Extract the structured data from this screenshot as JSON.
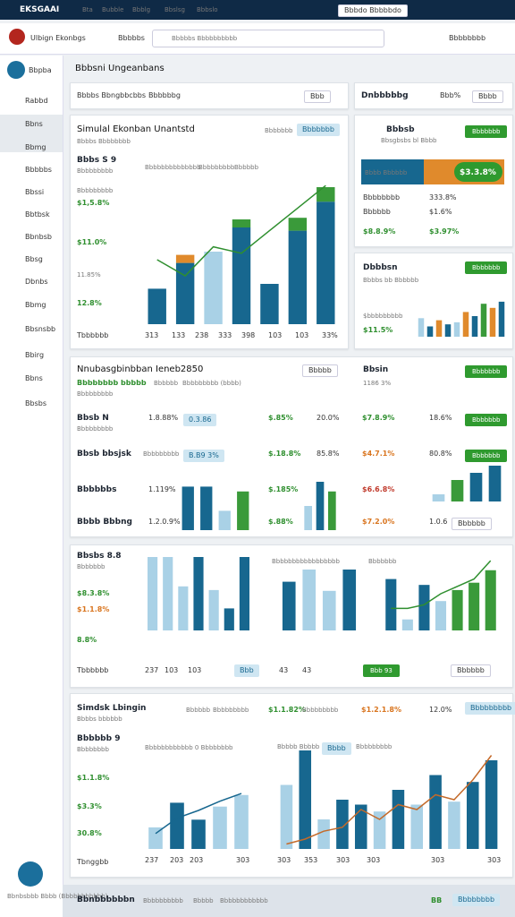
{
  "topbar": {
    "brand": "EKSGAAI",
    "nav": [
      "Bta",
      "Bubble",
      "Bbblg",
      "Bbslsg",
      "Bbbslo"
    ],
    "account": "Bbbdo Bbbbbdo"
  },
  "toolbar": {
    "title": "Ulbign Ekonbgs",
    "toggle": "Bbbbbs",
    "search": "Bbbbbs Bbbbbbbbbb",
    "user": "Bbbbbbbb"
  },
  "sidebar": {
    "header": "Bbpba",
    "items": [
      "Rabbd",
      "Bbns",
      "Bbmg",
      "Bbbbbs",
      "Bbssi",
      "Bbtbsk",
      "Bbnbsb",
      "Bbsg",
      "Dbnbs",
      "Bbmg",
      "Bbsnsbb",
      "Bbirg",
      "Bbns",
      "Bbsbs"
    ],
    "footer": "Bbnbsbbb Bbbb (Bbbbbbbbbbb)"
  },
  "page": {
    "title": "Bbbsni Ungeanbans"
  },
  "filter": {
    "label": "Bbbbs Bbngbbcbbs",
    "value": "Bbbbbbg",
    "select": "Bbb"
  },
  "overview": {
    "title": "Simulal Ekonban Unantstd",
    "subtitle": "Bbbbs Bbbbbbbb",
    "link": "Bbbbbbb",
    "button": "Bbbbbbb",
    "metric": "Bbbs S 9",
    "metric_sub": "Bbbbbbbbb",
    "legend": [
      "Bbbbbbbbbbbbbb",
      "Bbbbbbbbb",
      "Bbbbbb"
    ],
    "labels": [
      "Bbbbbbbbb",
      "$1,5.8%",
      "$11.0%",
      "11.85%",
      "12.8%"
    ],
    "footer": "Tbbbbbb",
    "xlabels": [
      "313",
      "133",
      "238",
      "333",
      "398",
      "103",
      "103",
      "33%"
    ]
  },
  "dnb": {
    "title": "Dnbbbbbg",
    "value": "Bbb%",
    "button": "Bbbb"
  },
  "status": {
    "title": "Bbbsb",
    "subtitle": "Bbsgbsbs bl Bbbb",
    "button": "Bbbbbbb",
    "bar_left": "Bbbb Bbbbbb",
    "bar_right": "$3.3.8%",
    "rows": [
      [
        "Bbbbbbbb",
        "333.8%"
      ],
      [
        "Bbbbbb",
        "$1.6%"
      ]
    ],
    "totals": [
      "$8.8.9%",
      "$3.97%"
    ]
  },
  "dist": {
    "title": "Dbbbsn",
    "subtitle": "Bbbbs bb Bbbbbb",
    "label": "$bbbbbbbbb",
    "value": "$11.5%",
    "button": "Bbbbbbb"
  },
  "table": {
    "title": "Nnubasgbinbban Ieneb2850",
    "tabs": [
      "Bbbbbbbb bbbbb",
      "Bbbbbb",
      "Bbbbbbbbb (bbbb)"
    ],
    "note": "Bbbbbbbbb",
    "button": "Bbbbb",
    "side_title": "Bbsin",
    "side_value": "1186 3%",
    "side_button": "Bbbbbbb",
    "rows": [
      [
        "Bbsb N",
        "Bbbbbbbbb",
        "1.8.88%",
        "0.3.86",
        "$.85%",
        "20.0%",
        "$7.8.9%",
        "18.6%",
        "Bbbbbbb"
      ],
      [
        "Bbsb bbsjsk",
        "Bbbbbbbbb",
        "B.B9 3%",
        "$.18.8%",
        "85.8%",
        "$4.7.1%",
        "80.8%",
        "Bbbbbbb"
      ],
      [
        "Bbbbbbs",
        "1.119%",
        "$.185%",
        "$6.6.8%"
      ],
      [
        "Bbbb Bbbng",
        "1.2.0.9%",
        "$.88%",
        "$7.2.0%",
        "1.0.6",
        "Bbbbbb"
      ]
    ]
  },
  "trends": {
    "title": "Bbsbs 8.8",
    "sub": "Bbbbbbb",
    "labels": [
      "$8.3.8%",
      "$1.1.8%",
      "8.8%"
    ],
    "footer": "Tbbbbbb",
    "headers": [
      "Bbbbbbbbbbbbbbbbb",
      "Bbbbbbb"
    ],
    "xlabels1": [
      "237",
      "103",
      "103"
    ],
    "chip": "Bbb",
    "xlabels2": [
      "43",
      "43"
    ],
    "chip2": "Bbb 93",
    "button": "Bbbbbb"
  },
  "summary": {
    "title": "Simdsk Lbingin",
    "sub": "Bbbbs bbbbbb",
    "legend": [
      "Bbbbbb",
      "Bbbbbbbbb"
    ],
    "stats": [
      "$1.1.82%",
      "Bbbbbbbbb",
      "$1.2.1.8%",
      "12.0%"
    ],
    "button": "Bbbbbbbbb",
    "metric": "Bbbbbb 9",
    "metric_sub": "Bbbbbbbb",
    "labels": [
      "$1.1.8%",
      "$3.3%",
      "30.8%"
    ],
    "footer": "Tbnggbb",
    "chart_legend1": "Bbbbbbbbbbbb 0 Bbbbbbbb",
    "chart_legend2": [
      "Bbbbb Bbbbb",
      "Bbbb",
      "Bbbbbbbbb"
    ],
    "xlabels1": [
      "237",
      "203",
      "203",
      "303"
    ],
    "xlabels2": [
      "303",
      "353",
      "303",
      "303",
      "303",
      "303"
    ]
  },
  "bottom": {
    "title": "Bbnbbbbbbn",
    "items": [
      "Bbbbbbbbbb",
      "Bbbbb",
      "Bbbbbbbbbbbb"
    ],
    "badge": "BB",
    "button": "Bbbbbbbb"
  },
  "charts": [
    {
      "values": [
        22,
        38,
        45,
        60,
        25,
        58,
        76
      ],
      "colors": [
        "#17678f",
        "#17678f",
        "#a9d1e6",
        "#17678f",
        "#17678f",
        "#17678f",
        "#17678f"
      ],
      "caps": {
        "values": [
          0,
          5,
          0,
          5,
          0,
          8,
          9
        ],
        "colors": [
          "#3a9a3a",
          "#e08a2c",
          "#3a9a3a",
          "#3a9a3a",
          "#3a9a3a",
          "#3a9a3a",
          "#3a9a3a"
        ]
      },
      "line": {
        "color": "#2f8f2f",
        "values": [
          40,
          30,
          48,
          44,
          58,
          72,
          86
        ]
      }
    },
    {
      "values": [
        45,
        25,
        40,
        30,
        35,
        60,
        50,
        80,
        70,
        85
      ],
      "colors": [
        "#a9d1e6",
        "#17678f",
        "#e08a2c",
        "#17678f",
        "#a9d1e6",
        "#e08a2c",
        "#17678f",
        "#3a9a3a",
        "#e08a2c",
        "#17678f"
      ]
    },
    {
      "values": [
        90,
        90,
        40,
        80
      ],
      "colors": [
        "#17678f",
        "#17678f",
        "#a9d1e6",
        "#3a9a3a"
      ]
    },
    {
      "values": [
        50,
        100,
        80
      ],
      "colors": [
        "#a9d1e6",
        "#17678f",
        "#3a9a3a"
      ]
    },
    {
      "values": [
        20,
        60,
        80,
        100
      ],
      "colors": [
        "#a9d1e6",
        "#3a9a3a",
        "#17678f",
        "#17678f"
      ]
    },
    {
      "values": [
        100,
        100,
        60,
        100,
        55,
        30,
        100
      ],
      "colors": [
        "#a9d1e6",
        "#a9d1e6",
        "#a9d1e6",
        "#17678f",
        "#a9d1e6",
        "#17678f",
        "#17678f"
      ]
    },
    {
      "values": [
        80,
        100,
        65,
        100
      ],
      "colors": [
        "#17678f",
        "#a9d1e6",
        "#a9d1e6",
        "#17678f"
      ]
    },
    {
      "values": [
        70,
        15,
        62,
        40,
        55,
        65,
        82
      ],
      "colors": [
        "#17678f",
        "#a9d1e6",
        "#17678f",
        "#a9d1e6",
        "#3a9a3a",
        "#3a9a3a",
        "#3a9a3a"
      ],
      "line": {
        "color": "#2f8f2f",
        "values": [
          30,
          30,
          35,
          50,
          60,
          70,
          95
        ]
      }
    },
    {
      "values": [
        28,
        60,
        38,
        55,
        70
      ],
      "colors": [
        "#a9d1e6",
        "#17678f",
        "#17678f",
        "#a9d1e6",
        "#a9d1e6"
      ],
      "line": {
        "color": "#17678f",
        "values": [
          20,
          40,
          50,
          62,
          72
        ]
      }
    },
    {
      "values": [
        65,
        100,
        30,
        50,
        45,
        38,
        60,
        45,
        75,
        48,
        68,
        90
      ],
      "colors": [
        "#a9d1e6",
        "#17678f",
        "#a9d1e6",
        "#17678f",
        "#17678f",
        "#a9d1e6",
        "#17678f",
        "#a9d1e6",
        "#17678f",
        "#a9d1e6",
        "#17678f",
        "#17678f"
      ],
      "line": {
        "color": "#c46a2a",
        "values": [
          5,
          10,
          18,
          22,
          40,
          30,
          45,
          40,
          55,
          50,
          70,
          95
        ]
      }
    }
  ]
}
